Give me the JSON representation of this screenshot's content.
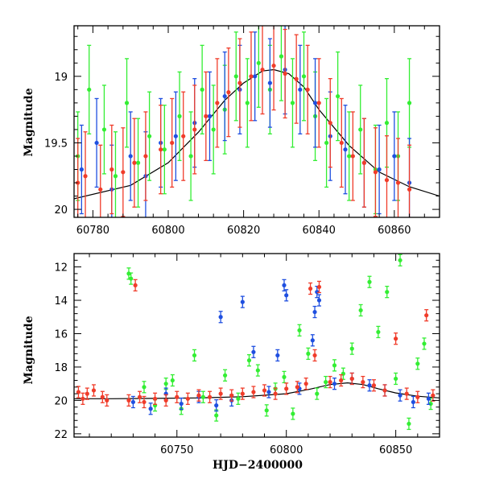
{
  "chart_data": [
    {
      "type": "scatter",
      "title": "",
      "xlabel": "",
      "ylabel": "Magnitude",
      "xlim": [
        60775,
        60872
      ],
      "ylim": [
        20.06,
        18.62
      ],
      "y_inverted": true,
      "xticks": [
        60780,
        60800,
        60820,
        60840,
        60860
      ],
      "xtick_labels": [
        "60780",
        "60800",
        "60820",
        "60840",
        "60860"
      ],
      "yticks": [
        19,
        19.5,
        20
      ],
      "ytick_labels": [
        "19",
        "19.5",
        "20"
      ],
      "grid": false,
      "legend": "none",
      "error_bars": true,
      "model_curve": {
        "x": [
          60775,
          60790,
          60800,
          60808,
          60815,
          60820,
          60825,
          60828,
          60832,
          60836,
          60840,
          60848,
          60856,
          60864,
          60872
        ],
        "y": [
          19.92,
          19.82,
          19.65,
          19.42,
          19.18,
          19.05,
          18.96,
          18.95,
          18.98,
          19.08,
          19.25,
          19.52,
          19.72,
          19.83,
          19.9
        ]
      },
      "series": [
        {
          "color": "#33ee33",
          "x": [
            60776,
            60779,
            60783,
            60786,
            60789,
            60792,
            60795,
            60799,
            60803,
            60806,
            60809,
            60812,
            60815,
            60818,
            60821,
            60824,
            60827,
            60830,
            60833,
            60836,
            60839,
            60842,
            60845,
            60848,
            60851,
            60855,
            60858,
            60861,
            60864
          ],
          "y": [
            19.6,
            19.1,
            19.4,
            19.75,
            19.2,
            19.65,
            19.45,
            19.55,
            19.3,
            19.6,
            19.1,
            19.4,
            19.25,
            19.0,
            19.2,
            18.9,
            19.1,
            18.85,
            19.2,
            19.0,
            19.3,
            19.5,
            19.15,
            19.6,
            19.4,
            19.7,
            19.35,
            19.6,
            19.2
          ]
        },
        {
          "color": "#1f4fe0",
          "x": [
            60777,
            60781,
            60785,
            60790,
            60794,
            60798,
            60802,
            60807,
            60811,
            60815,
            60819,
            60823,
            60827,
            60831,
            60835,
            60839,
            60843,
            60847,
            60852,
            60856,
            60860,
            60864
          ],
          "y": [
            19.7,
            19.5,
            19.85,
            19.6,
            19.75,
            19.5,
            19.45,
            19.35,
            19.3,
            19.15,
            19.1,
            19.0,
            19.05,
            18.95,
            19.1,
            19.2,
            19.45,
            19.55,
            19.65,
            19.7,
            19.6,
            19.8
          ]
        },
        {
          "color": "#f03c2a",
          "x": [
            60776,
            60778,
            60782,
            60785,
            60788,
            60791,
            60794,
            60798,
            60801,
            60804,
            60807,
            60810,
            60813,
            60816,
            60819,
            60822,
            60825,
            60828,
            60831,
            60834,
            60837,
            60840,
            60843,
            60846,
            60849,
            60852,
            60855,
            60858,
            60861,
            60864
          ],
          "y": [
            19.8,
            19.75,
            19.85,
            19.7,
            19.72,
            19.65,
            19.6,
            19.55,
            19.5,
            19.45,
            19.4,
            19.3,
            19.2,
            19.12,
            19.05,
            19.0,
            18.95,
            18.92,
            18.98,
            19.02,
            19.1,
            19.2,
            19.35,
            19.5,
            19.6,
            19.65,
            19.72,
            19.78,
            19.8,
            19.85
          ]
        }
      ]
    },
    {
      "type": "scatter",
      "title": "",
      "xlabel": "HJD−2400000",
      "ylabel": "Magnitude",
      "xlim": [
        60703,
        60870
      ],
      "ylim": [
        22.2,
        11.2
      ],
      "y_inverted": true,
      "xticks": [
        60750,
        60800,
        60850
      ],
      "xtick_labels": [
        "60750",
        "60800",
        "60850"
      ],
      "yticks": [
        12,
        14,
        16,
        18,
        20,
        22
      ],
      "ytick_labels": [
        "12",
        "14",
        "16",
        "18",
        "20",
        "22"
      ],
      "grid": false,
      "legend": "none",
      "error_bars": true,
      "model_curve": {
        "x": [
          60703,
          60720,
          60740,
          60760,
          60780,
          60800,
          60810,
          60820,
          60828,
          60835,
          60842,
          60850,
          60860,
          60870
        ],
        "y": [
          19.9,
          19.9,
          19.88,
          19.85,
          19.78,
          19.6,
          19.35,
          19.05,
          18.95,
          19.05,
          19.3,
          19.55,
          19.75,
          19.85
        ]
      },
      "series": [
        {
          "color": "#33ee33",
          "x": [
            60728,
            60729,
            60735,
            60740,
            60745,
            60748,
            60752,
            60758,
            60762,
            60768,
            60772,
            60778,
            60783,
            60787,
            60791,
            60795,
            60799,
            60803,
            60806,
            60810,
            60814,
            60818,
            60822,
            60826,
            60830,
            60834,
            60838,
            60842,
            60846,
            60850,
            60852,
            60856,
            60860,
            60863,
            60866
          ],
          "y": [
            12.4,
            12.7,
            19.2,
            20.3,
            19.0,
            18.8,
            20.5,
            17.3,
            19.8,
            20.9,
            18.5,
            19.9,
            17.6,
            18.2,
            20.6,
            19.3,
            18.6,
            20.8,
            15.8,
            17.2,
            19.6,
            18.9,
            17.9,
            18.4,
            16.9,
            14.6,
            12.9,
            15.9,
            13.5,
            18.7,
            11.6,
            21.4,
            17.8,
            16.6,
            20.2
          ]
        },
        {
          "color": "#1f4fe0",
          "x": [
            60730,
            60738,
            60745,
            60752,
            60760,
            60768,
            60770,
            60775,
            60780,
            60785,
            60792,
            60796,
            60799,
            60800,
            60806,
            60812,
            60813,
            60814,
            60815,
            60822,
            60830,
            60838,
            60845,
            60852,
            60858,
            60865
          ],
          "y": [
            20.1,
            20.5,
            19.6,
            20.2,
            19.8,
            20.3,
            15.0,
            20.0,
            14.1,
            17.1,
            19.5,
            17.3,
            13.1,
            13.7,
            19.3,
            16.4,
            14.7,
            13.5,
            14.0,
            19.0,
            18.7,
            19.1,
            19.4,
            19.7,
            20.1,
            19.9
          ]
        },
        {
          "color": "#f03c2a",
          "x": [
            60705,
            60707,
            60709,
            60712,
            60716,
            60718,
            60728,
            60731,
            60733,
            60735,
            60740,
            60745,
            60750,
            60755,
            60760,
            60765,
            60770,
            60775,
            60780,
            60785,
            60790,
            60795,
            60800,
            60805,
            60809,
            60811,
            60813,
            60815,
            60820,
            60825,
            60830,
            60835,
            60840,
            60845,
            60850,
            60855,
            60860,
            60864,
            60867
          ],
          "y": [
            19.5,
            19.9,
            19.6,
            19.4,
            19.8,
            20.0,
            20.0,
            13.1,
            19.8,
            20.1,
            19.9,
            20.0,
            19.8,
            19.9,
            19.7,
            19.8,
            19.6,
            19.7,
            19.6,
            19.5,
            19.4,
            19.6,
            19.3,
            19.2,
            19.0,
            13.3,
            17.3,
            13.2,
            18.9,
            18.8,
            18.7,
            18.9,
            19.1,
            19.4,
            16.3,
            19.6,
            19.8,
            14.9,
            19.7
          ]
        }
      ]
    }
  ]
}
